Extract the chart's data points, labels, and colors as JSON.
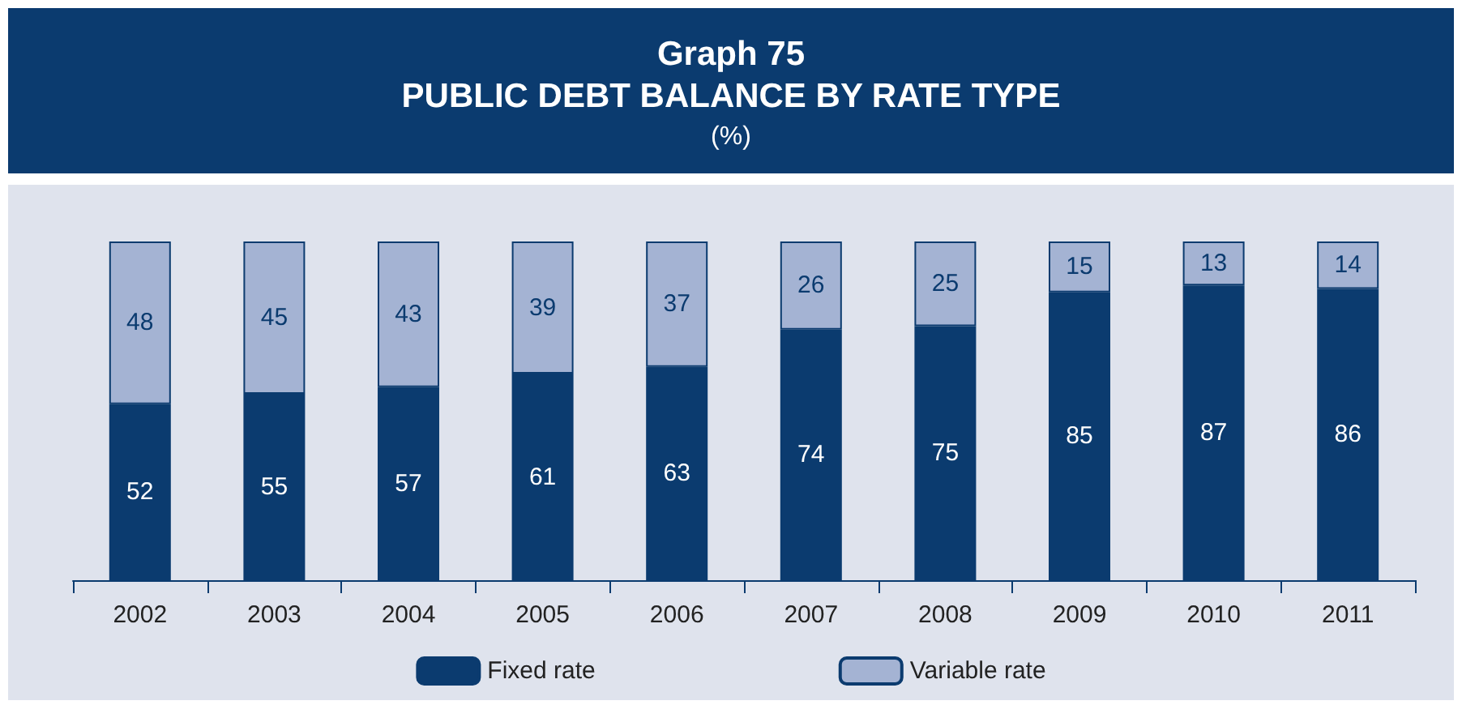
{
  "chart_data": {
    "type": "bar",
    "title": "Graph 75\nPUBLIC DEBT BALANCE BY RATE TYPE",
    "subtitle": "(%)",
    "stacked": true,
    "data_labels": true,
    "legend": "bottom",
    "grid": false,
    "categories": [
      "2002",
      "2003",
      "2004",
      "2005",
      "2006",
      "2007",
      "2008",
      "2009",
      "2010",
      "2011"
    ],
    "series": [
      {
        "name": "Fixed rate",
        "color": "#0b3b6f",
        "values": [
          52,
          55,
          57,
          61,
          63,
          74,
          75,
          85,
          87,
          86
        ]
      },
      {
        "name": "Variable rate",
        "color": "#a4b3d3",
        "values": [
          48,
          45,
          43,
          39,
          37,
          26,
          25,
          15,
          13,
          14
        ]
      }
    ]
  }
}
